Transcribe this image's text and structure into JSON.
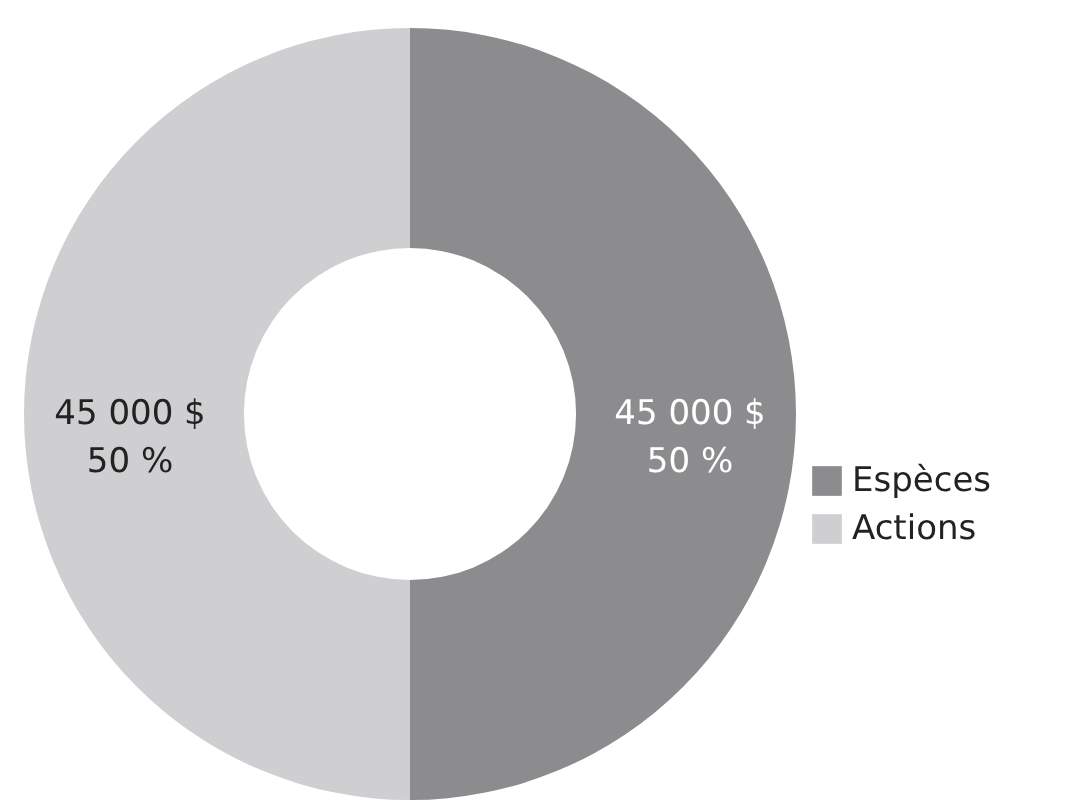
{
  "chart_data": {
    "type": "donut",
    "categories": [
      "Espèces",
      "Actions"
    ],
    "values": [
      45000,
      45000
    ],
    "colors": [
      "#8c8c8e",
      "#cfcfd1"
    ],
    "value_labels": [
      "45 000 $\n50 %",
      "45 000 $\n50 %"
    ],
    "legend": "right"
  }
}
